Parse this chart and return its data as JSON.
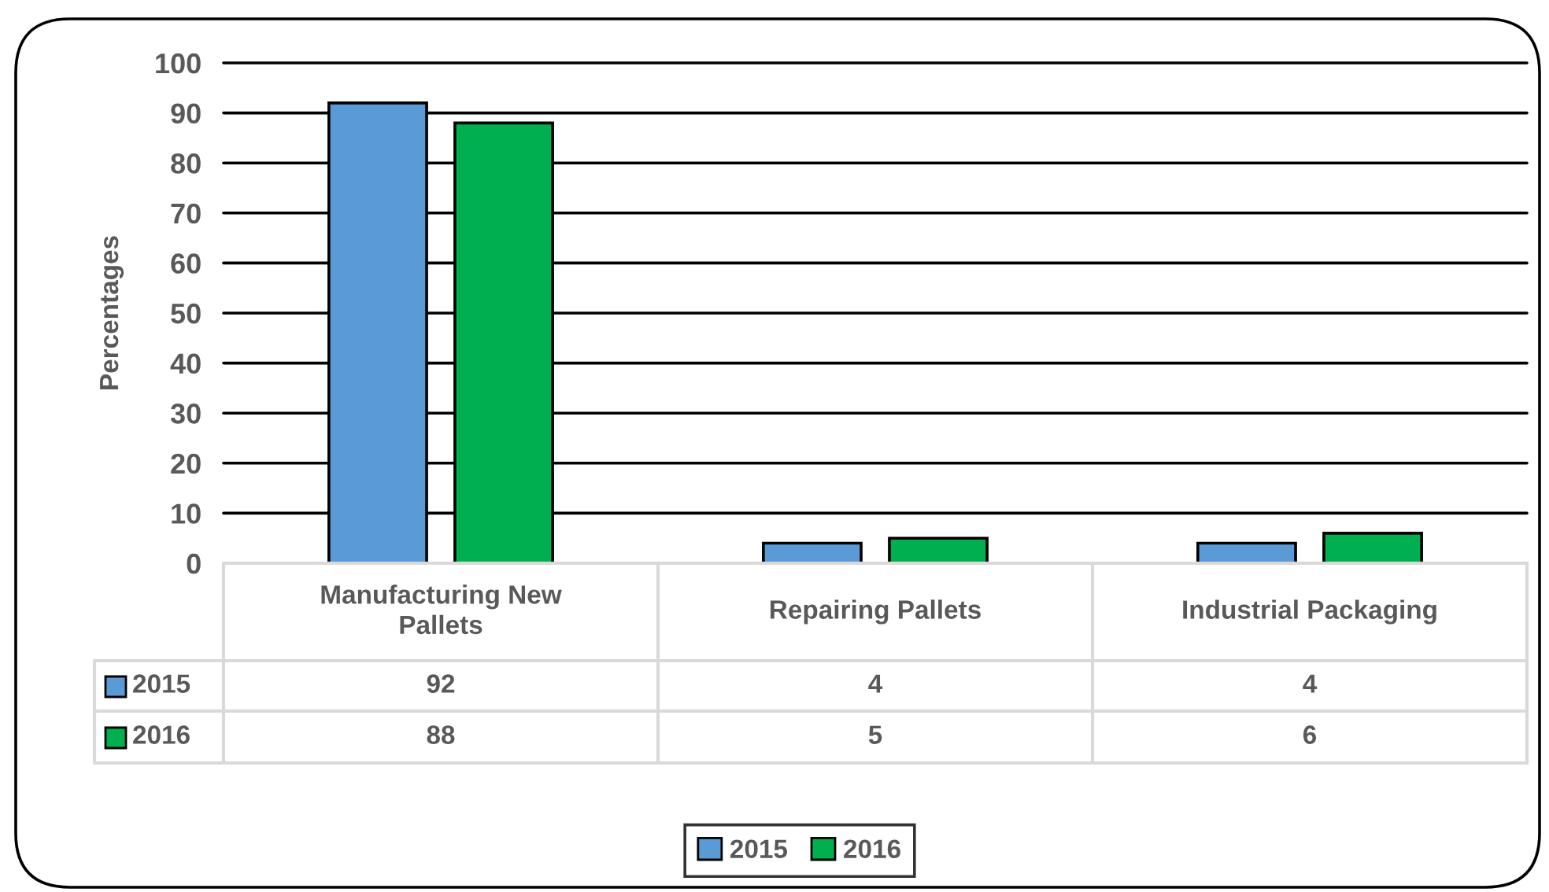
{
  "chart_data": {
    "type": "bar",
    "ylabel": "Percentages",
    "categories": [
      "Manufacturing New Pallets",
      "Repairing Pallets",
      "Industrial Packaging"
    ],
    "series": [
      {
        "name": "2015",
        "color": "#5b9bd5",
        "values": [
          92,
          4,
          4
        ]
      },
      {
        "name": "2016",
        "color": "#00b050",
        "values": [
          88,
          5,
          6
        ]
      }
    ],
    "ylim": [
      0,
      100
    ],
    "yticks": [
      0,
      10,
      20,
      30,
      40,
      50,
      60,
      70,
      80,
      90,
      100
    ],
    "grid": "y",
    "legend": "bottom",
    "data_labels": true
  }
}
